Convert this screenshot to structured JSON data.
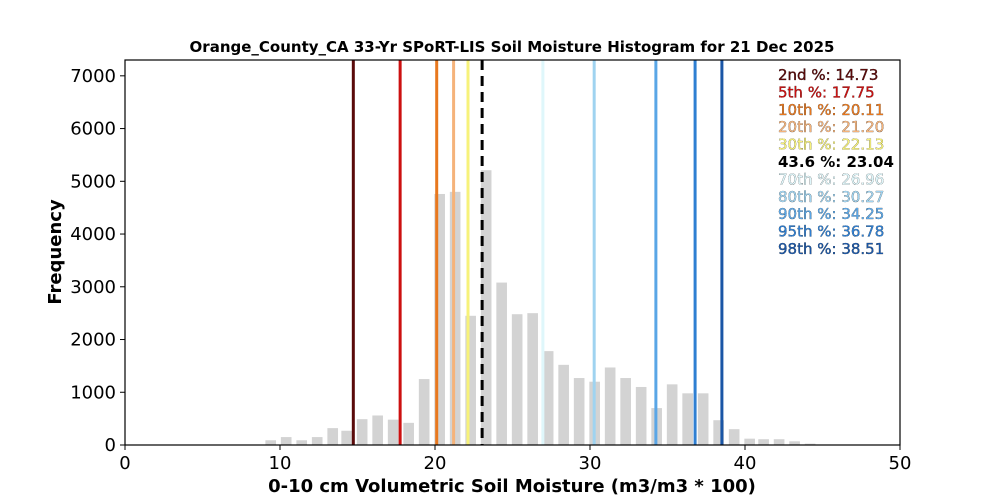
{
  "chart_data": {
    "type": "bar",
    "title": "Orange_County_CA 33-Yr SPoRT-LIS Soil Moisture Histogram for 21 Dec 2025",
    "xlabel": "0-10 cm Volumetric Soil Moisture (m3/m3 * 100)",
    "ylabel": "Frequency",
    "xlim": [
      0,
      50
    ],
    "ylim": [
      0,
      7300
    ],
    "xticks": [
      0,
      10,
      20,
      30,
      40,
      50
    ],
    "yticks": [
      0,
      1000,
      2000,
      3000,
      4000,
      5000,
      6000,
      7000
    ],
    "bar_color": "#d3d3d3",
    "bin_width": 0.98,
    "bar_fill_fraction": 0.7,
    "bins": [
      {
        "x": 9.4,
        "value": 90
      },
      {
        "x": 10.4,
        "value": 150
      },
      {
        "x": 11.4,
        "value": 90
      },
      {
        "x": 12.4,
        "value": 150
      },
      {
        "x": 13.4,
        "value": 320
      },
      {
        "x": 14.3,
        "value": 270
      },
      {
        "x": 15.3,
        "value": 490
      },
      {
        "x": 16.3,
        "value": 560
      },
      {
        "x": 17.3,
        "value": 480
      },
      {
        "x": 18.3,
        "value": 420
      },
      {
        "x": 19.3,
        "value": 1250
      },
      {
        "x": 20.3,
        "value": 4760
      },
      {
        "x": 21.3,
        "value": 4800
      },
      {
        "x": 22.3,
        "value": 2450
      },
      {
        "x": 23.3,
        "value": 5210
      },
      {
        "x": 24.3,
        "value": 3080
      },
      {
        "x": 25.3,
        "value": 2480
      },
      {
        "x": 26.3,
        "value": 2500
      },
      {
        "x": 27.3,
        "value": 1780
      },
      {
        "x": 28.3,
        "value": 1520
      },
      {
        "x": 29.3,
        "value": 1270
      },
      {
        "x": 30.3,
        "value": 1200
      },
      {
        "x": 31.3,
        "value": 1470
      },
      {
        "x": 32.3,
        "value": 1270
      },
      {
        "x": 33.3,
        "value": 1100
      },
      {
        "x": 34.3,
        "value": 700
      },
      {
        "x": 35.3,
        "value": 1150
      },
      {
        "x": 36.3,
        "value": 980
      },
      {
        "x": 37.3,
        "value": 980
      },
      {
        "x": 38.3,
        "value": 470
      },
      {
        "x": 39.3,
        "value": 300
      },
      {
        "x": 40.3,
        "value": 120
      },
      {
        "x": 41.2,
        "value": 110
      },
      {
        "x": 42.2,
        "value": 110
      },
      {
        "x": 43.2,
        "value": 70
      },
      {
        "x": 44.2,
        "value": 25
      },
      {
        "x": 45.2,
        "value": 10
      }
    ],
    "percentiles": [
      {
        "label": "2nd %: 14.73",
        "value": 14.73,
        "color": "#5a0a0a"
      },
      {
        "label": "5th %: 17.75",
        "value": 17.75,
        "color": "#cc1010"
      },
      {
        "label": "10th %: 20.11",
        "value": 20.11,
        "color": "#e8781e"
      },
      {
        "label": "20th %: 21.20",
        "value": 21.2,
        "color": "#f5b37a"
      },
      {
        "label": "30th %: 22.13",
        "value": 22.13,
        "color": "#f7f27a"
      },
      {
        "label": "43.6 %: 23.04",
        "value": 23.04,
        "color": "#000000",
        "current": true
      },
      {
        "label": "70th %: 26.96",
        "value": 26.96,
        "color": "#dff7fb"
      },
      {
        "label": "80th %: 30.27",
        "value": 30.27,
        "color": "#9fd3f0"
      },
      {
        "label": "90th %: 34.25",
        "value": 34.25,
        "color": "#5aa6e6"
      },
      {
        "label": "95th %: 36.78",
        "value": 36.78,
        "color": "#2f7fd2"
      },
      {
        "label": "98th %: 38.51",
        "value": 38.51,
        "color": "#1a56a6"
      }
    ]
  }
}
